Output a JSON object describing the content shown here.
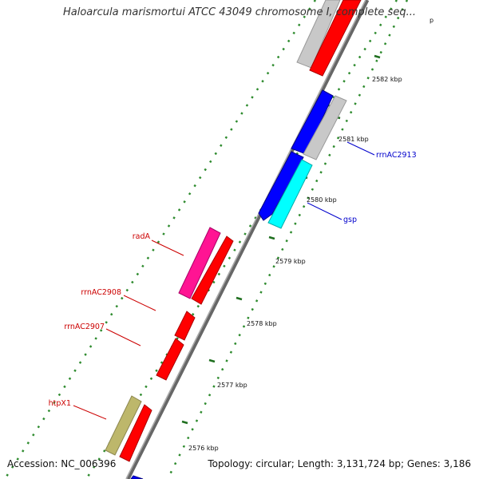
{
  "title": "Haloarcula marismortui ATCC 43049 chromosome I, complete seq...",
  "accession_label": "Accession: NC_006396",
  "topology_label": "Topology: circular; Length: 3,131,724 bp; Genes: 3,186",
  "tick_labels": [
    "2576 kbp",
    "2577 kbp",
    "2578 kbp",
    "2579 kbp",
    "2580 kbp",
    "2581 kbp",
    "2582 kbp",
    "p"
  ],
  "genes": [
    {
      "id": "rrnAC2913",
      "label": "rrnAC2913",
      "color": "#0000cc"
    },
    {
      "id": "gsp",
      "label": "gsp",
      "color": "#0000cc"
    },
    {
      "id": "radA",
      "label": "radA",
      "color": "#cc0000"
    },
    {
      "id": "rrnAC2908",
      "label": "rrnAC2908",
      "color": "#cc0000"
    },
    {
      "id": "rrnAC2907",
      "label": "rrnAC2907",
      "color": "#cc0000"
    },
    {
      "id": "htpX1",
      "label": "htpX1",
      "color": "#cc0000"
    }
  ],
  "colors": {
    "backbone": "#888888",
    "tick_marks": "#2e8b2e",
    "forward_feature": "#ff0000",
    "reverse_feature": "#0000ff",
    "grey_feature": "#c8c8c8",
    "cyan_feature": "#00ffff",
    "magenta_feature": "#ff1493",
    "olive_feature": "#bdb76b"
  }
}
